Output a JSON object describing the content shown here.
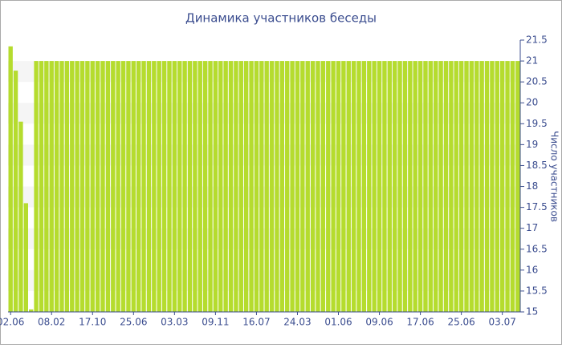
{
  "chart_data": {
    "type": "bar",
    "title": "Динамика участников беседы",
    "y_label": "Число участников",
    "categories": [
      "02.06",
      null,
      null,
      null,
      null,
      null,
      null,
      null,
      "08.02",
      null,
      null,
      null,
      null,
      null,
      null,
      null,
      "17.10",
      null,
      null,
      null,
      null,
      null,
      null,
      null,
      "25.06",
      null,
      null,
      null,
      null,
      null,
      null,
      null,
      "03.03",
      null,
      null,
      null,
      null,
      null,
      null,
      null,
      "09.11",
      null,
      null,
      null,
      null,
      null,
      null,
      null,
      "16.07",
      null,
      null,
      null,
      null,
      null,
      null,
      null,
      "24.03",
      null,
      null,
      null,
      null,
      null,
      null,
      null,
      "01.06",
      null,
      null,
      null,
      null,
      null,
      null,
      null,
      "09.06",
      null,
      null,
      null,
      null,
      null,
      null,
      null,
      "17.06",
      null,
      null,
      null,
      null,
      null,
      null,
      null,
      "25.06",
      null,
      null,
      null,
      null,
      null,
      null,
      null,
      "03.07",
      null,
      null,
      null
    ],
    "values": [
      21.35,
      20.77,
      19.55,
      17.6,
      15.06,
      21,
      21,
      21,
      21,
      21,
      21,
      21,
      21,
      21,
      21,
      21,
      21,
      21,
      21,
      21,
      21,
      21,
      21,
      21,
      21,
      21,
      21,
      21,
      21,
      21,
      21,
      21,
      21,
      21,
      21,
      21,
      21,
      21,
      21,
      21,
      21,
      21,
      21,
      21,
      21,
      21,
      21,
      21,
      21,
      21,
      21,
      21,
      21,
      21,
      21,
      21,
      21,
      21,
      21,
      21,
      21,
      21,
      21,
      21,
      21,
      21,
      21,
      21,
      21,
      21,
      21,
      21,
      21,
      21,
      21,
      21,
      21,
      21,
      21,
      21,
      21,
      21,
      21,
      21,
      21,
      21,
      21,
      21,
      21,
      21,
      21,
      21,
      21,
      21,
      21,
      21,
      21,
      21,
      21,
      21
    ],
    "color": "#b5dc2e",
    "ylim": [
      15,
      21.5
    ],
    "yticks": [
      15,
      15.5,
      16,
      16.5,
      17,
      17.5,
      18,
      18.5,
      19,
      19.5,
      20,
      20.5,
      21,
      21.5
    ],
    "grid": true
  }
}
